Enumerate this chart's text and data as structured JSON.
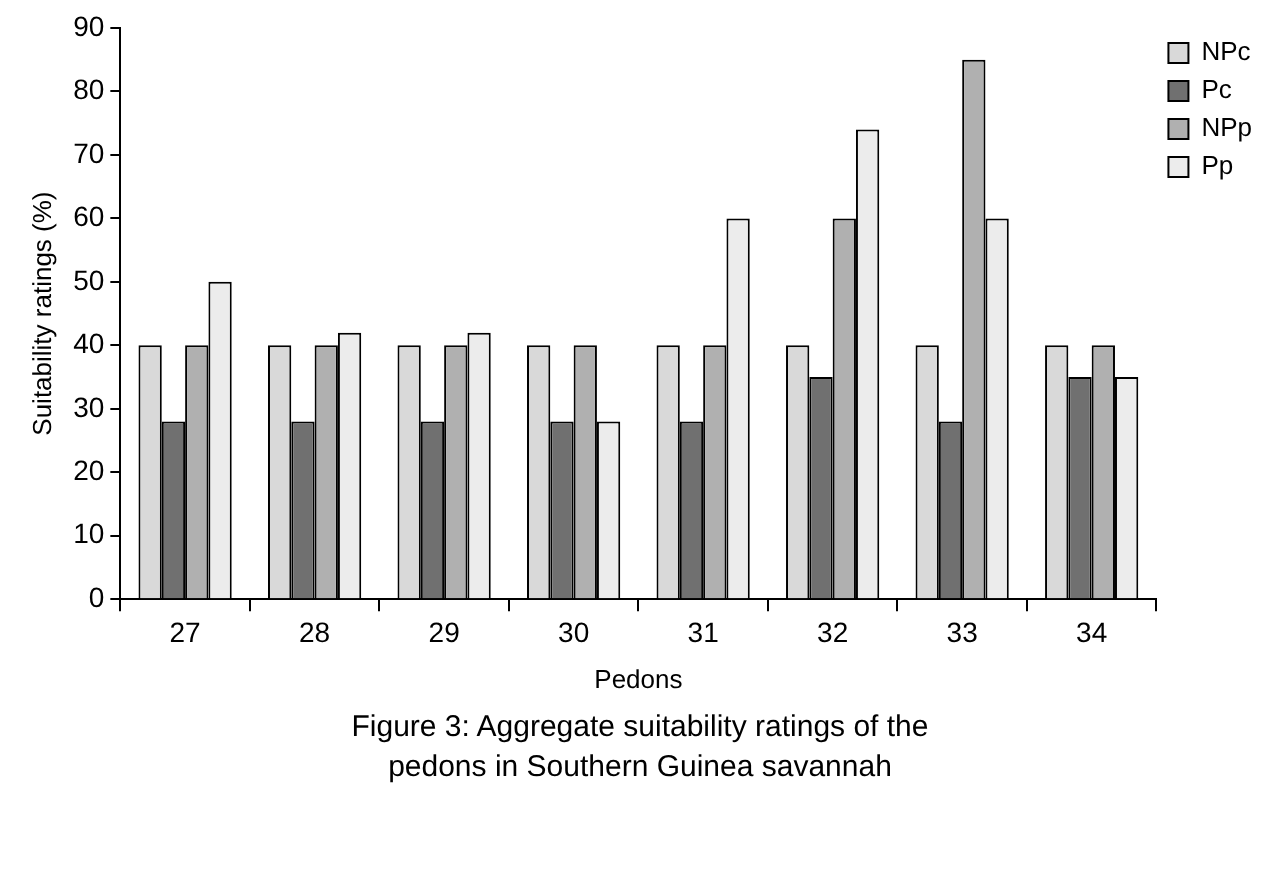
{
  "chart_data": {
    "type": "bar",
    "title": "Figure 3: Aggregate suitability ratings of the pedons in Southern Guinea savannah",
    "xlabel": "Pedons",
    "ylabel": "Suitability ratings (%)",
    "categories": [
      "27",
      "28",
      "29",
      "30",
      "31",
      "32",
      "33",
      "34"
    ],
    "series": [
      {
        "name": "NPc",
        "color": "#d9d9d9",
        "values": [
          40,
          40,
          40,
          40,
          40,
          40,
          40,
          40
        ]
      },
      {
        "name": "Pc",
        "color": "#707070",
        "values": [
          28,
          28,
          28,
          28,
          28,
          35,
          28,
          35
        ]
      },
      {
        "name": "NPp",
        "color": "#b0b0b0",
        "values": [
          40,
          40,
          40,
          40,
          40,
          60,
          85,
          40
        ]
      },
      {
        "name": "Pp",
        "color": "#ececec",
        "values": [
          50,
          42,
          42,
          28,
          60,
          74,
          60,
          35
        ]
      }
    ],
    "ylim": [
      0,
      90
    ],
    "yticks": [
      0,
      10,
      20,
      30,
      40,
      50,
      60,
      70,
      80,
      90
    ],
    "grid": false,
    "legend": "top right"
  }
}
